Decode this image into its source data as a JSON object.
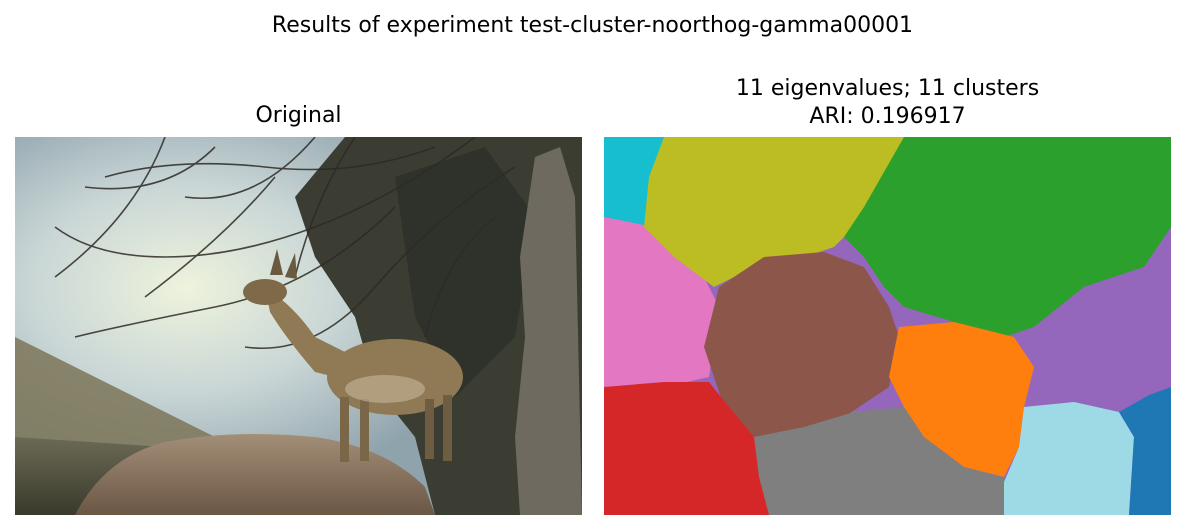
{
  "figure": {
    "suptitle": "Results of experiment test-cluster-noorthog-gamma00001"
  },
  "panels": {
    "original": {
      "title": "Original"
    },
    "segmentation": {
      "title_line1": "11 eigenvalues; 11 clusters",
      "title_line2": "ARI: 0.196917",
      "n_clusters": 11,
      "ari": 0.196917,
      "palette": [
        "#17becf",
        "#bcbd22",
        "#2ca02c",
        "#e377c2",
        "#8c564b",
        "#9467bd",
        "#ff7f0e",
        "#d62728",
        "#7f7f7f",
        "#9edae5",
        "#1f77b4"
      ]
    }
  }
}
